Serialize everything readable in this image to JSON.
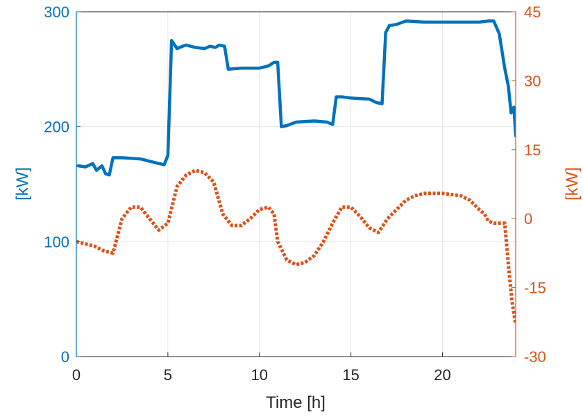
{
  "chart_data": {
    "type": "line",
    "title": "",
    "xlabel": "Time [h]",
    "ylabel_left": "[kW]",
    "ylabel_right": "[kW]",
    "xlim": [
      0,
      24
    ],
    "ylim_left": [
      0,
      300
    ],
    "ylim_right": [
      -30,
      45
    ],
    "xticks": [
      0,
      5,
      10,
      15,
      20
    ],
    "yticks_left": [
      0,
      100,
      200,
      300
    ],
    "yticks_right": [
      -30,
      -15,
      0,
      15,
      30,
      45
    ],
    "grid": true,
    "legend": "none",
    "colors": {
      "left_axis": "#0072BD",
      "right_axis": "#D95319",
      "grid": "#e6e6e6",
      "axis_box": "#262626"
    },
    "series": [
      {
        "axis": "left",
        "style": "solid",
        "color": "#0072BD",
        "x": [
          0.1,
          0.5,
          0.9,
          1.1,
          1.4,
          1.6,
          1.8,
          2.0,
          2.2,
          2.5,
          3.5,
          4.0,
          4.5,
          4.8,
          5.0,
          5.2,
          5.5,
          5.8,
          6.0,
          6.5,
          7.0,
          7.3,
          7.6,
          7.8,
          8.1,
          8.3,
          9.0,
          10.0,
          10.5,
          10.8,
          11.0,
          11.2,
          11.5,
          12.0,
          13.0,
          13.7,
          14.0,
          14.2,
          14.5,
          15.0,
          16.0,
          16.4,
          16.7,
          16.9,
          17.1,
          17.5,
          18.0,
          19.0,
          20.0,
          21.0,
          22.0,
          22.5,
          22.8,
          23.1,
          23.4,
          23.6,
          23.75,
          23.9,
          24.0
        ],
        "values": [
          166,
          165,
          168,
          162,
          166,
          159,
          158,
          173,
          173,
          173,
          172,
          170,
          168,
          167,
          175,
          275,
          268,
          270,
          271,
          269,
          268,
          270,
          269,
          271,
          270,
          250,
          251,
          251,
          253,
          256,
          256,
          200,
          201,
          204,
          205,
          204,
          202,
          226,
          226,
          225,
          224,
          221,
          220,
          282,
          288,
          289,
          292,
          291,
          291,
          291,
          291,
          292,
          292,
          281,
          251,
          235,
          212,
          217,
          192
        ]
      },
      {
        "axis": "right",
        "style": "dotted",
        "color": "#D95319",
        "x": [
          0,
          0.5,
          1.0,
          1.5,
          2.0,
          2.5,
          3.0,
          3.5,
          4.0,
          4.5,
          5.0,
          5.5,
          6.0,
          6.5,
          7.0,
          7.5,
          8.0,
          8.5,
          9.0,
          9.5,
          10.0,
          10.5,
          10.8,
          11.0,
          11.5,
          12.0,
          12.5,
          13.0,
          13.5,
          14.0,
          14.5,
          15.0,
          15.5,
          16.0,
          16.5,
          17.0,
          17.5,
          18.0,
          18.5,
          19.0,
          20.0,
          21.0,
          21.5,
          22.0,
          22.3,
          22.5,
          22.8,
          23.0,
          23.4,
          23.6,
          23.8,
          24.0
        ],
        "values": [
          -5,
          -5.5,
          -6,
          -7,
          -7.5,
          0,
          2.5,
          2.5,
          0,
          -2.5,
          -1,
          7,
          9.5,
          10.5,
          10,
          8,
          1,
          -1.5,
          -1.5,
          0,
          2,
          2.5,
          1,
          -5,
          -9,
          -10,
          -9.5,
          -8,
          -5,
          -1,
          2.5,
          2.5,
          0.5,
          -2,
          -3,
          0,
          2,
          4,
          5,
          5.5,
          5.5,
          5,
          4,
          2,
          1,
          -0.5,
          -1,
          -1,
          -1,
          -10,
          -18,
          -23
        ]
      }
    ]
  }
}
